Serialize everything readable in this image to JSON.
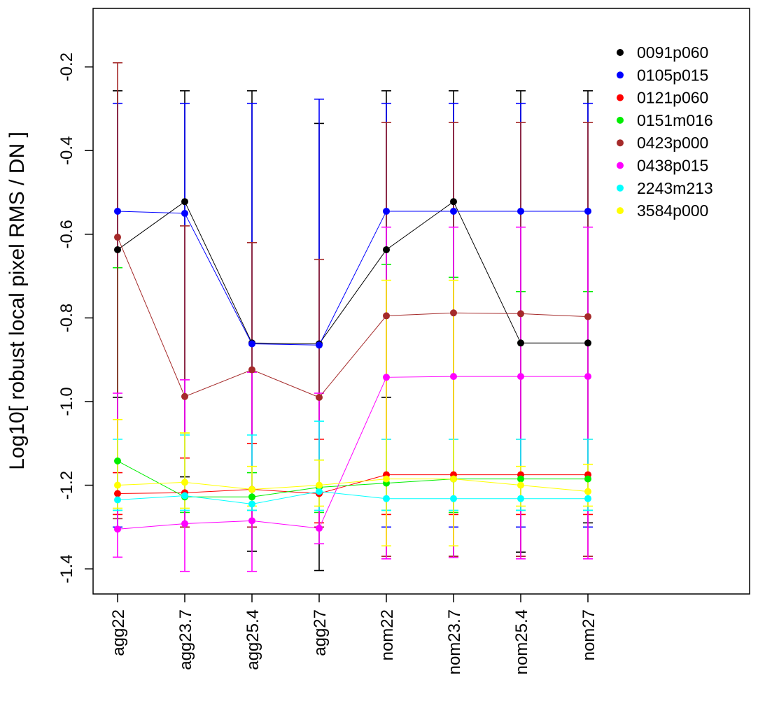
{
  "chart_data": {
    "type": "line",
    "title": "",
    "xlabel": "",
    "ylabel": "Log10[ robust local pixel RMS / DN ]",
    "categories": [
      "agg22",
      "agg23.7",
      "agg25.4",
      "agg27",
      "nom22",
      "nom23.7",
      "nom25.4",
      "nom27"
    ],
    "ylim": [
      -1.46,
      -0.06
    ],
    "yticks": [
      -1.4,
      -1.2,
      -1.0,
      -0.8,
      -0.6,
      -0.4,
      -0.2
    ],
    "ytick_labels": [
      "-1.4",
      "-1.2",
      "-1.0",
      "-0.8",
      "-0.6",
      "-0.4",
      "-0.2"
    ],
    "legend_position": "top-right",
    "grid": false,
    "series": [
      {
        "name": "0091p060",
        "color": "#000000",
        "values": [
          -0.637,
          -0.522,
          -0.86,
          -0.862,
          -0.637,
          -0.522,
          -0.86,
          -0.86
        ],
        "upper": [
          -0.257,
          -0.257,
          -0.257,
          -0.335,
          -0.257,
          -0.257,
          -0.257,
          -0.257
        ],
        "lower": [
          -0.99,
          -1.18,
          -1.358,
          -1.404,
          -0.99,
          -1.37,
          -1.36,
          -1.29
        ]
      },
      {
        "name": "0105p015",
        "color": "#0000ff",
        "values": [
          -0.545,
          -0.55,
          -0.862,
          -0.865,
          -0.545,
          -0.545,
          -0.545,
          -0.545
        ],
        "upper": [
          -0.287,
          -0.287,
          -0.287,
          -0.277,
          -0.287,
          -0.287,
          -0.287,
          -0.287
        ],
        "lower": [
          -1.3,
          -1.3,
          -1.3,
          -1.3,
          -1.3,
          -1.3,
          -1.3,
          -1.3
        ]
      },
      {
        "name": "0121p060",
        "color": "#ff0000",
        "values": [
          -1.22,
          -1.218,
          -1.21,
          -1.22,
          -1.175,
          -1.175,
          -1.175,
          -1.175
        ],
        "upper": [
          -1.17,
          -1.135,
          -1.1,
          -1.09,
          -1.09,
          -1.09,
          -1.09,
          -1.09
        ],
        "lower": [
          -1.27,
          -1.3,
          -1.3,
          -1.29,
          -1.27,
          -1.27,
          -1.27,
          -1.27
        ]
      },
      {
        "name": "0151m016",
        "color": "#00ee00",
        "values": [
          -1.142,
          -1.228,
          -1.228,
          -1.205,
          -1.195,
          -1.185,
          -1.185,
          -1.185
        ],
        "upper": [
          -0.68,
          -1.075,
          -1.17,
          -1.14,
          -0.672,
          -0.703,
          -0.737,
          -0.737
        ],
        "lower": [
          -1.26,
          -1.265,
          -1.26,
          -1.265,
          -1.26,
          -1.265,
          -1.26,
          -1.26
        ]
      },
      {
        "name": "0423p000",
        "color": "#a52a2a",
        "values": [
          -0.607,
          -0.988,
          -0.924,
          -0.99,
          -0.795,
          -0.788,
          -0.79,
          -0.797
        ],
        "upper": [
          -0.19,
          -0.58,
          -0.62,
          -0.66,
          -0.333,
          -0.333,
          -0.333,
          -0.333
        ],
        "lower": [
          -1.28,
          -1.3,
          -1.3,
          -1.3,
          -1.37,
          -1.37,
          -1.37,
          -1.37
        ]
      },
      {
        "name": "0438p015",
        "color": "#ff00ff",
        "values": [
          -1.305,
          -1.292,
          -1.285,
          -1.303,
          -0.942,
          -0.94,
          -0.94,
          -0.94
        ],
        "upper": [
          -0.98,
          -0.948,
          -0.93,
          -0.98,
          -0.583,
          -0.583,
          -0.583,
          -0.583
        ],
        "lower": [
          -1.372,
          -1.406,
          -1.406,
          -1.34,
          -1.376,
          -1.373,
          -1.376,
          -1.376
        ]
      },
      {
        "name": "2243m213",
        "color": "#00ffff",
        "values": [
          -1.235,
          -1.225,
          -1.245,
          -1.215,
          -1.232,
          -1.232,
          -1.232,
          -1.232
        ],
        "upper": [
          -1.09,
          -1.08,
          -1.08,
          -1.047,
          -1.09,
          -1.09,
          -1.09,
          -1.09
        ],
        "lower": [
          -1.26,
          -1.26,
          -1.26,
          -1.26,
          -1.26,
          -1.26,
          -1.26,
          -1.26
        ]
      },
      {
        "name": "3584p000",
        "color": "#ffff00",
        "values": [
          -1.2,
          -1.193,
          -1.21,
          -1.2,
          -1.185,
          -1.185,
          -1.2,
          -1.215
        ],
        "upper": [
          -1.043,
          -1.075,
          -1.155,
          -1.14,
          -0.71,
          -0.71,
          -1.155,
          -1.15
        ],
        "lower": [
          -1.255,
          -1.255,
          -1.25,
          -1.25,
          -1.345,
          -1.345,
          -1.25,
          -1.25
        ]
      }
    ]
  }
}
